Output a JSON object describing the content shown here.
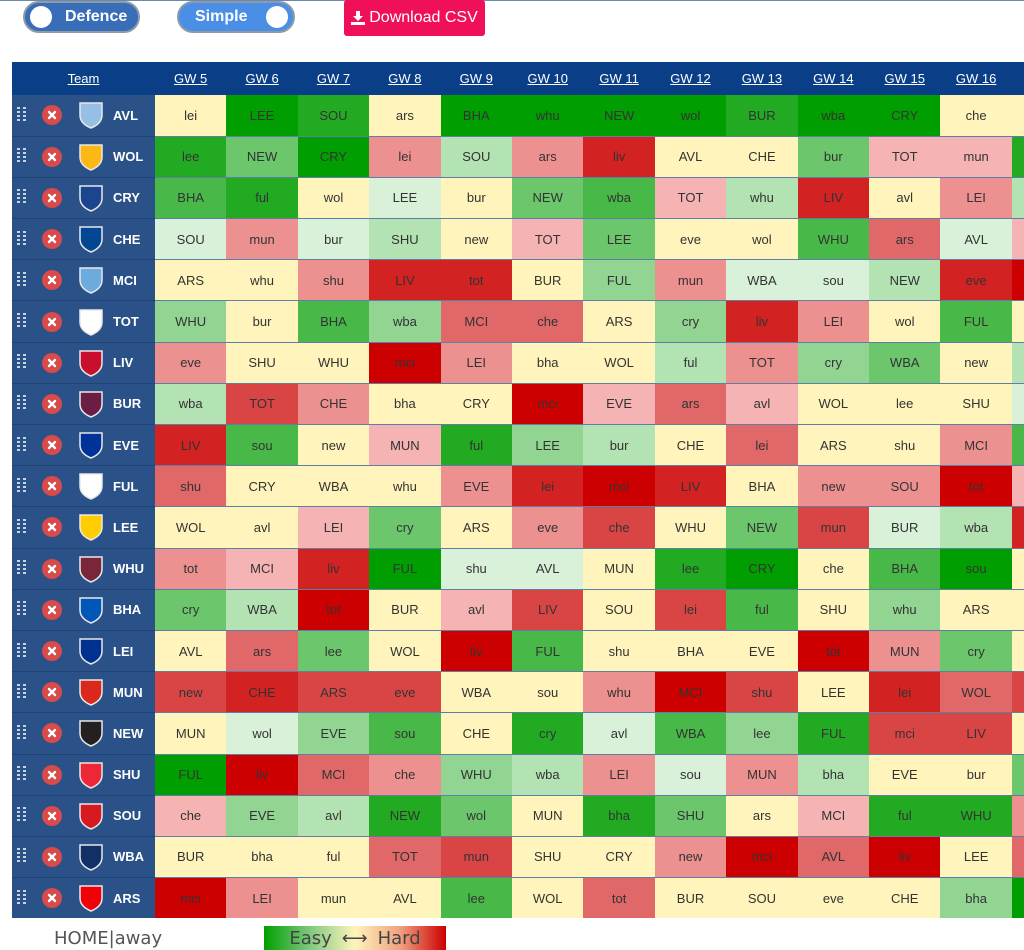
{
  "controls": {
    "defence_toggle": "Defence",
    "simple_toggle": "Simple",
    "download_button": "Download CSV"
  },
  "palette": {
    "g3": "#009e00",
    "g2": "#22aa22",
    "g1": "#48b848",
    "g0b": "#6cc66c",
    "g0": "#92d492",
    "lg": "#b3e2b3",
    "vlg": "#d9f0d9",
    "y": "#fff4bb",
    "lp": "#f5b3b3",
    "p": "#ec9090",
    "r1": "#e06868",
    "r2": "#d94545",
    "r3": "#d22222",
    "r4": "#cc0000"
  },
  "table": {
    "team_header": "Team",
    "columns": [
      "GW 5",
      "GW 6",
      "GW 7",
      "GW 8",
      "GW 9",
      "GW 10",
      "GW 11",
      "GW 12",
      "GW 13",
      "GW 14",
      "GW 15",
      "GW 16"
    ],
    "rows": [
      {
        "team": "AVL",
        "crest": "aston-villa-crest",
        "crest_color": "#95bfe5",
        "fixtures": [
          "lei",
          "LEE",
          "SOU",
          "ars",
          "BHA",
          "whu",
          "NEW",
          "wol",
          "BUR",
          "wba",
          "CRY",
          "che"
        ],
        "colors": [
          "y",
          "g3",
          "g2",
          "y",
          "g3",
          "g3",
          "g3",
          "g3",
          "g2",
          "g3",
          "g3",
          "y"
        ],
        "next": "y"
      },
      {
        "team": "WOL",
        "crest": "wolves-crest",
        "crest_color": "#fdb913",
        "fixtures": [
          "lee",
          "NEW",
          "CRY",
          "lei",
          "SOU",
          "ars",
          "liv",
          "AVL",
          "CHE",
          "bur",
          "TOT",
          "mun"
        ],
        "colors": [
          "g2",
          "g0b",
          "g3",
          "p",
          "lg",
          "p",
          "r3",
          "y",
          "y",
          "g0b",
          "lp",
          "lp"
        ],
        "next": "g2"
      },
      {
        "team": "CRY",
        "crest": "crystal-palace-crest",
        "crest_color": "#1b458f",
        "fixtures": [
          "BHA",
          "ful",
          "wol",
          "LEE",
          "bur",
          "NEW",
          "wba",
          "TOT",
          "whu",
          "LIV",
          "avl",
          "LEI"
        ],
        "colors": [
          "g1",
          "g2",
          "y",
          "vlg",
          "y",
          "g0b",
          "g1",
          "lp",
          "lg",
          "r3",
          "y",
          "p"
        ],
        "next": "lg"
      },
      {
        "team": "CHE",
        "crest": "chelsea-crest",
        "crest_color": "#034694",
        "fixtures": [
          "SOU",
          "mun",
          "bur",
          "SHU",
          "new",
          "TOT",
          "LEE",
          "eve",
          "wol",
          "WHU",
          "ars",
          "AVL"
        ],
        "colors": [
          "vlg",
          "p",
          "vlg",
          "lg",
          "y",
          "lp",
          "g0b",
          "y",
          "y",
          "g1",
          "r1",
          "vlg"
        ],
        "next": "lp"
      },
      {
        "team": "MCI",
        "crest": "man-city-crest",
        "crest_color": "#6cabdd",
        "fixtures": [
          "ARS",
          "whu",
          "shu",
          "LIV",
          "tot",
          "BUR",
          "FUL",
          "mun",
          "WBA",
          "sou",
          "NEW",
          "eve"
        ],
        "colors": [
          "y",
          "y",
          "p",
          "r3",
          "r3",
          "y",
          "g0",
          "p",
          "vlg",
          "vlg",
          "lg",
          "r3"
        ],
        "next": "r4"
      },
      {
        "team": "TOT",
        "crest": "tottenham-crest",
        "crest_color": "#ffffff",
        "fixtures": [
          "WHU",
          "bur",
          "BHA",
          "wba",
          "MCI",
          "che",
          "ARS",
          "cry",
          "liv",
          "LEI",
          "wol",
          "FUL"
        ],
        "colors": [
          "g0",
          "y",
          "g1",
          "g0",
          "r1",
          "r1",
          "y",
          "g0",
          "r3",
          "p",
          "y",
          "g1"
        ],
        "next": "y"
      },
      {
        "team": "LIV",
        "crest": "liverpool-crest",
        "crest_color": "#c8102e",
        "fixtures": [
          "eve",
          "SHU",
          "WHU",
          "mci",
          "LEI",
          "bha",
          "WOL",
          "ful",
          "TOT",
          "cry",
          "WBA",
          "new"
        ],
        "colors": [
          "p",
          "y",
          "y",
          "r4",
          "p",
          "y",
          "y",
          "lg",
          "p",
          "g0",
          "g0b",
          "y"
        ],
        "next": "lg"
      },
      {
        "team": "BUR",
        "crest": "burnley-crest",
        "crest_color": "#6c1d45",
        "fixtures": [
          "wba",
          "TOT",
          "CHE",
          "bha",
          "CRY",
          "mci",
          "EVE",
          "ars",
          "avl",
          "WOL",
          "lee",
          "SHU"
        ],
        "colors": [
          "lg",
          "r2",
          "p",
          "y",
          "y",
          "r4",
          "lp",
          "r1",
          "lp",
          "y",
          "y",
          "y"
        ],
        "next": "vlg"
      },
      {
        "team": "EVE",
        "crest": "everton-crest",
        "crest_color": "#003399",
        "fixtures": [
          "LIV",
          "sou",
          "new",
          "MUN",
          "ful",
          "LEE",
          "bur",
          "CHE",
          "lei",
          "ARS",
          "shu",
          "MCI"
        ],
        "colors": [
          "r3",
          "g1",
          "y",
          "lp",
          "g2",
          "g0",
          "lg",
          "y",
          "r1",
          "y",
          "y",
          "p"
        ],
        "next": "g1"
      },
      {
        "team": "FUL",
        "crest": "fulham-crest",
        "crest_color": "#ffffff",
        "fixtures": [
          "shu",
          "CRY",
          "WBA",
          "whu",
          "EVE",
          "lei",
          "mci",
          "LIV",
          "BHA",
          "new",
          "SOU",
          "tot"
        ],
        "colors": [
          "r1",
          "y",
          "y",
          "y",
          "p",
          "r3",
          "r4",
          "r3",
          "y",
          "p",
          "p",
          "r4"
        ],
        "next": "lp"
      },
      {
        "team": "LEE",
        "crest": "leeds-crest",
        "crest_color": "#ffcd00",
        "fixtures": [
          "WOL",
          "avl",
          "LEI",
          "cry",
          "ARS",
          "eve",
          "che",
          "WHU",
          "NEW",
          "mun",
          "BUR",
          "wba"
        ],
        "colors": [
          "y",
          "y",
          "lp",
          "g0b",
          "y",
          "p",
          "r2",
          "y",
          "g0b",
          "r2",
          "vlg",
          "lg"
        ],
        "next": "r3"
      },
      {
        "team": "WHU",
        "crest": "west-ham-crest",
        "crest_color": "#7a263a",
        "fixtures": [
          "tot",
          "MCI",
          "liv",
          "FUL",
          "shu",
          "AVL",
          "MUN",
          "lee",
          "CRY",
          "che",
          "BHA",
          "sou"
        ],
        "colors": [
          "p",
          "lp",
          "r3",
          "g3",
          "vlg",
          "vlg",
          "y",
          "g2",
          "g3",
          "y",
          "g1",
          "g3"
        ],
        "next": "y"
      },
      {
        "team": "BHA",
        "crest": "brighton-crest",
        "crest_color": "#0057b8",
        "fixtures": [
          "cry",
          "WBA",
          "tot",
          "BUR",
          "avl",
          "LIV",
          "SOU",
          "lei",
          "ful",
          "SHU",
          "whu",
          "ARS"
        ],
        "colors": [
          "g0b",
          "lg",
          "r4",
          "y",
          "lp",
          "r2",
          "y",
          "r2",
          "g1",
          "y",
          "g0",
          "y"
        ],
        "next": "y"
      },
      {
        "team": "LEI",
        "crest": "leicester-crest",
        "crest_color": "#003090",
        "fixtures": [
          "AVL",
          "ars",
          "lee",
          "WOL",
          "liv",
          "FUL",
          "shu",
          "BHA",
          "EVE",
          "tot",
          "MUN",
          "cry"
        ],
        "colors": [
          "y",
          "r1",
          "g0b",
          "y",
          "r4",
          "g1",
          "y",
          "y",
          "y",
          "r4",
          "p",
          "g0b"
        ],
        "next": "y"
      },
      {
        "team": "MUN",
        "crest": "man-utd-crest",
        "crest_color": "#da291c",
        "fixtures": [
          "new",
          "CHE",
          "ARS",
          "eve",
          "WBA",
          "sou",
          "whu",
          "MCI",
          "shu",
          "LEE",
          "lei",
          "WOL"
        ],
        "colors": [
          "r2",
          "r3",
          "r2",
          "r2",
          "y",
          "y",
          "p",
          "r4",
          "r2",
          "y",
          "r3",
          "r1"
        ],
        "next": "r2"
      },
      {
        "team": "NEW",
        "crest": "newcastle-crest",
        "crest_color": "#241f20",
        "fixtures": [
          "MUN",
          "wol",
          "EVE",
          "sou",
          "CHE",
          "cry",
          "avl",
          "WBA",
          "lee",
          "FUL",
          "mci",
          "LIV"
        ],
        "colors": [
          "y",
          "vlg",
          "g0",
          "g1",
          "y",
          "g2",
          "vlg",
          "g1",
          "g0",
          "g2",
          "r2",
          "r2"
        ],
        "next": "y"
      },
      {
        "team": "SHU",
        "crest": "sheffield-utd-crest",
        "crest_color": "#ee2737",
        "fixtures": [
          "FUL",
          "liv",
          "MCI",
          "che",
          "WHU",
          "wba",
          "LEI",
          "sou",
          "MUN",
          "bha",
          "EVE",
          "bur"
        ],
        "colors": [
          "g3",
          "r4",
          "r1",
          "p",
          "g0",
          "lg",
          "p",
          "vlg",
          "p",
          "lg",
          "y",
          "y"
        ],
        "next": "g0b"
      },
      {
        "team": "SOU",
        "crest": "southampton-crest",
        "crest_color": "#d71920",
        "fixtures": [
          "che",
          "EVE",
          "avl",
          "NEW",
          "wol",
          "MUN",
          "bha",
          "SHU",
          "ars",
          "MCI",
          "ful",
          "WHU"
        ],
        "colors": [
          "lp",
          "g0",
          "lg",
          "g2",
          "g0b",
          "y",
          "g2",
          "g0b",
          "y",
          "lp",
          "g2",
          "g2"
        ],
        "next": "p"
      },
      {
        "team": "WBA",
        "crest": "west-brom-crest",
        "crest_color": "#122f67",
        "fixtures": [
          "BUR",
          "bha",
          "ful",
          "TOT",
          "mun",
          "SHU",
          "CRY",
          "new",
          "mci",
          "AVL",
          "liv",
          "LEE"
        ],
        "colors": [
          "y",
          "y",
          "y",
          "r1",
          "r2",
          "y",
          "y",
          "p",
          "r4",
          "r1",
          "r4",
          "y"
        ],
        "next": "r1"
      },
      {
        "team": "ARS",
        "crest": "arsenal-crest",
        "crest_color": "#ef0107",
        "fixtures": [
          "mci",
          "LEI",
          "mun",
          "AVL",
          "lee",
          "WOL",
          "tot",
          "BUR",
          "SOU",
          "eve",
          "CHE",
          "bha"
        ],
        "colors": [
          "r4",
          "p",
          "y",
          "y",
          "g1",
          "y",
          "r1",
          "y",
          "y",
          "y",
          "y",
          "g0"
        ],
        "next": "g3"
      }
    ]
  },
  "legend": {
    "home_away": "HOME|away",
    "easy": "Easy",
    "arrow": "⟷",
    "hard": "Hard"
  }
}
